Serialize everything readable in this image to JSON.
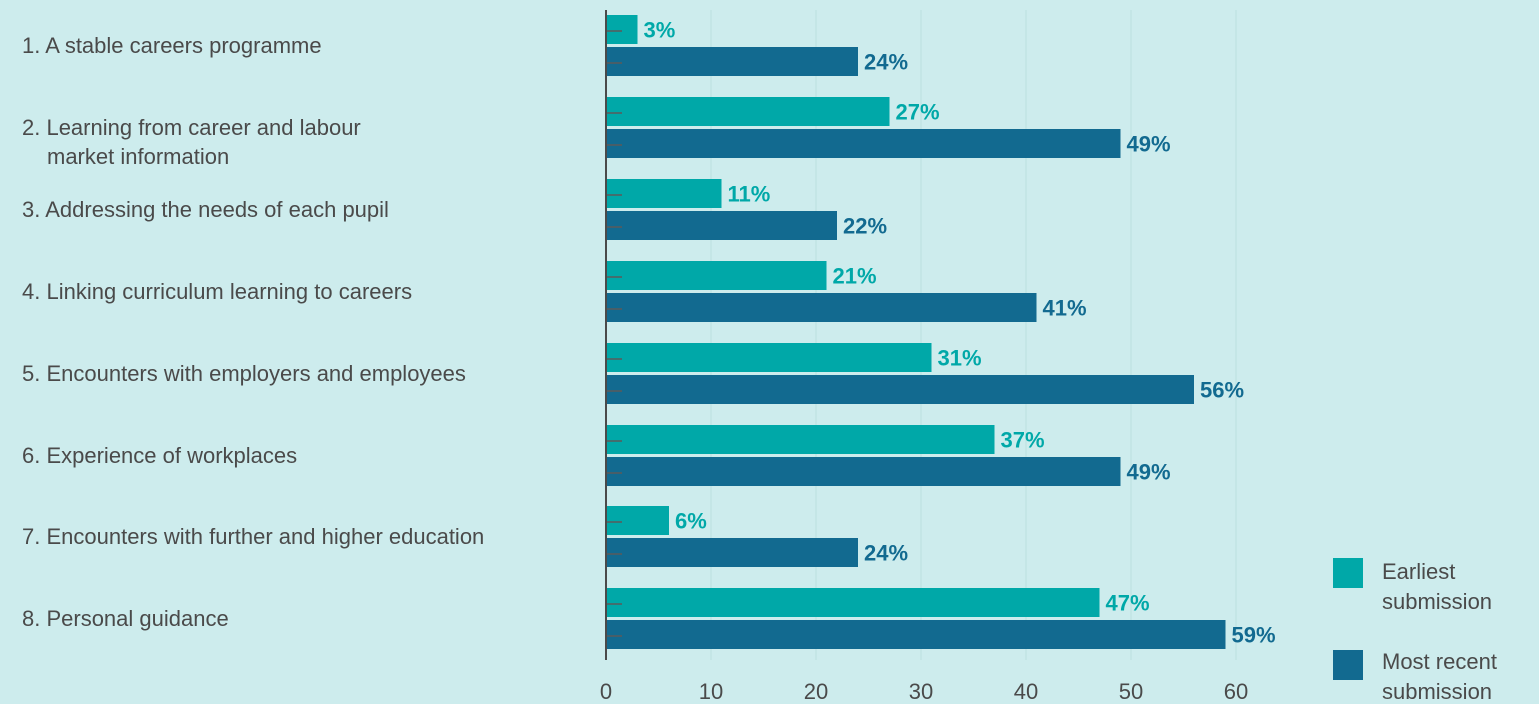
{
  "chart_data": {
    "type": "bar",
    "orientation": "horizontal",
    "categories": [
      [
        "1. A stable careers programme"
      ],
      [
        "2. Learning from career and labour",
        "market information"
      ],
      [
        "3. Addressing the needs of each pupil"
      ],
      [
        "4. Linking curriculum learning to careers"
      ],
      [
        "5. Encounters with employers and employees"
      ],
      [
        "6. Experience of workplaces"
      ],
      [
        "7. Encounters with further and higher education"
      ],
      [
        "8. Personal guidance"
      ]
    ],
    "series": [
      {
        "name": "Earliest submission",
        "legend_lines": [
          "Earliest",
          "submission"
        ],
        "color": "#00a8a8",
        "values": [
          3,
          27,
          11,
          21,
          31,
          37,
          6,
          47
        ],
        "labels": [
          "3%",
          "27%",
          "11%",
          "21%",
          "31%",
          "37%",
          "6%",
          "47%"
        ]
      },
      {
        "name": "Most recent submission",
        "legend_lines": [
          "Most recent",
          "submission"
        ],
        "color": "#126a90",
        "values": [
          24,
          49,
          22,
          41,
          56,
          49,
          24,
          59
        ],
        "labels": [
          "24%",
          "49%",
          "22%",
          "41%",
          "56%",
          "49%",
          "24%",
          "59%"
        ]
      }
    ],
    "xlim": [
      0,
      60
    ],
    "xticks": [
      "0",
      "10",
      "20",
      "30",
      "40",
      "50",
      "60"
    ],
    "grid": true,
    "legend_position": "bottom-right",
    "title": "",
    "xlabel": "",
    "ylabel": ""
  }
}
